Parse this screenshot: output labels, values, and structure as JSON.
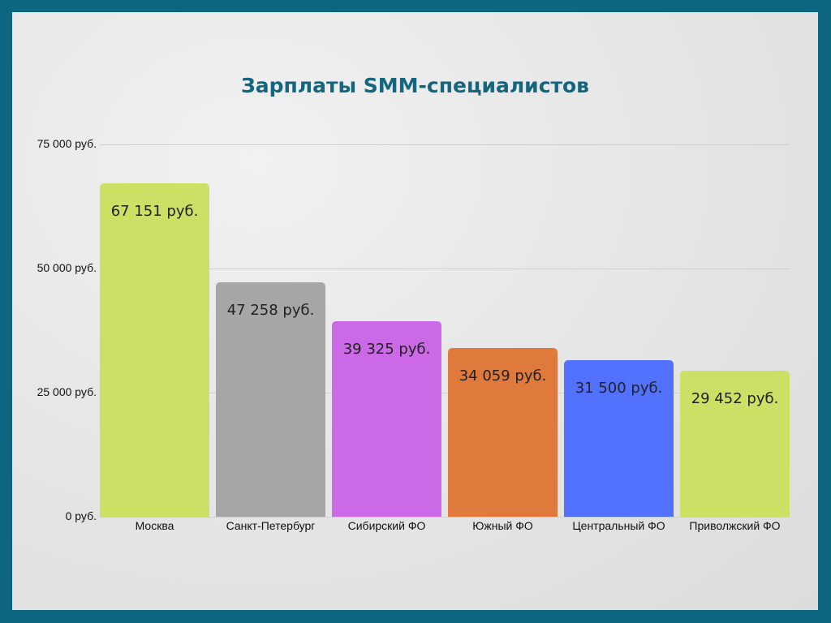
{
  "chart_data": {
    "type": "bar",
    "title": "Зарплаты SMM-специалистов",
    "xlabel": "",
    "ylabel": "",
    "ylim": [
      0,
      75000
    ],
    "grid": true,
    "yticks": [
      {
        "value": 0,
        "label": "0 руб."
      },
      {
        "value": 25000,
        "label": "25 000 руб."
      },
      {
        "value": 50000,
        "label": "50 000 руб."
      },
      {
        "value": 75000,
        "label": "75 000 руб."
      }
    ],
    "categories": [
      "Москва",
      "Санкт-Петербург",
      "Сибирский ФО",
      "Южный ФО",
      "Центральный ФО",
      "Приволжский ФО"
    ],
    "values": [
      67151,
      47258,
      39325,
      34059,
      31500,
      29452
    ],
    "data_labels": [
      "67 151 руб.",
      "47 258 руб.",
      "39 325 руб.",
      "34 059 руб.",
      "31 500 руб.",
      "29 452 руб."
    ],
    "colors": [
      "#cbe064",
      "#a6a6a6",
      "#cc69e6",
      "#e07a3c",
      "#5271ff",
      "#cbe064"
    ]
  }
}
